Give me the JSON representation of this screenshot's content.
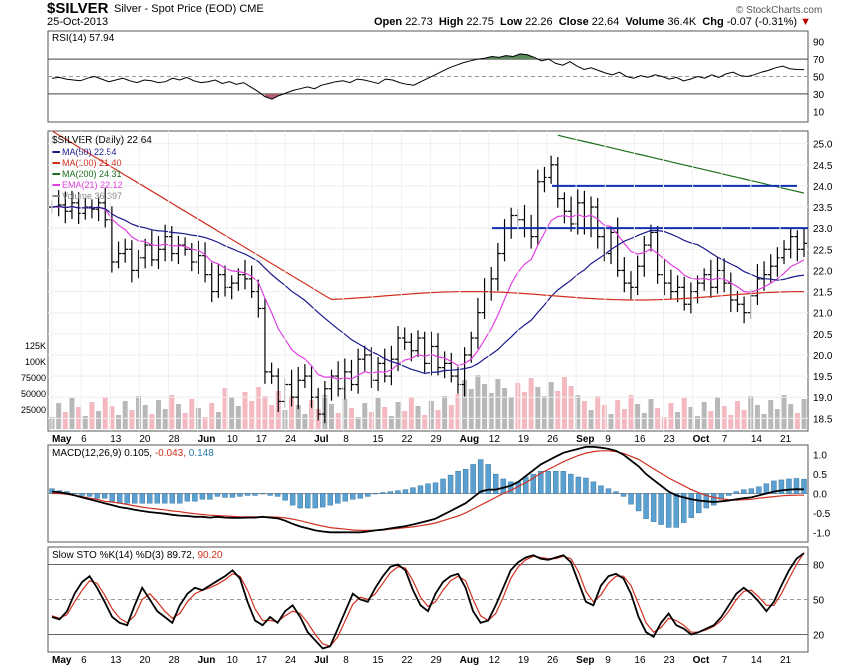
{
  "header": {
    "symbol": "$SILVER",
    "description": "Silver - Spot Price (EOD)",
    "exchange": "CME",
    "date": "25-Oct-2013",
    "open_label": "Open",
    "open": "22.73",
    "high_label": "High",
    "high": "22.75",
    "low_label": "Low",
    "low": "22.26",
    "close_label": "Close",
    "close": "22.64",
    "volume_label": "Volume",
    "volume": "36.4K",
    "chg_label": "Chg",
    "chg": "-0.07 (-0.31%)",
    "brand": "© StockCharts.com"
  },
  "colors": {
    "ma50": "#1a1a8c",
    "ma100": "#d03020",
    "ma200": "#1a6e1a",
    "ema21": "#e040e0",
    "vol_up": "#b8b8b8",
    "vol_down": "#f4b8c0",
    "macd_hist": "#5aa0d0",
    "rsi_over": "#5a8a5a",
    "rsi_under": "#b06070",
    "resistance": "#1030b0"
  },
  "chart_data": [
    {
      "type": "line",
      "title": "RSI(14) 57.94",
      "yticks": [
        10,
        30,
        50,
        70,
        90
      ],
      "ylim": [
        0,
        100
      ],
      "reference_lines": [
        30,
        50,
        70
      ],
      "values": [
        48,
        49,
        47,
        46,
        45,
        48,
        50,
        47,
        44,
        46,
        48,
        45,
        43,
        46,
        45,
        43,
        44,
        48,
        46,
        49,
        45,
        43,
        44,
        46,
        42,
        44,
        41,
        43,
        38,
        33,
        27,
        24,
        28,
        31,
        34,
        36,
        38,
        36,
        40,
        42,
        44,
        45,
        43,
        47,
        46,
        44,
        42,
        47,
        46,
        43,
        41,
        40,
        44,
        48,
        52,
        56,
        60,
        63,
        66,
        68,
        70,
        71,
        73,
        72,
        74,
        73,
        76,
        75,
        72,
        68,
        70,
        65,
        63,
        67,
        62,
        58,
        60,
        57,
        54,
        52,
        55,
        50,
        48,
        51,
        49,
        52,
        50,
        47,
        49,
        45,
        47,
        50,
        48,
        52,
        49,
        53,
        55,
        51,
        50,
        52,
        55,
        57,
        60,
        62,
        59,
        58,
        57.94
      ]
    },
    {
      "type": "line",
      "title": "$SILVER (Daily) 22.64",
      "legend": [
        {
          "name": "MA(50) 22.54",
          "color": "#1a1a8c"
        },
        {
          "name": "MA(100) 21.40",
          "color": "#d03020"
        },
        {
          "name": "MA(200) 24.31",
          "color": "#1a6e1a"
        },
        {
          "name": "EMA(21) 22.12",
          "color": "#e040e0"
        },
        {
          "name": "Volume 36,397",
          "color": "#888888"
        }
      ],
      "yticks": [
        18.5,
        19.0,
        19.5,
        20.0,
        20.5,
        21.0,
        21.5,
        22.0,
        22.5,
        23.0,
        23.5,
        24.0,
        24.5,
        25.0
      ],
      "ylim": [
        18.2,
        25.3
      ],
      "volume_ticks": [
        "25000",
        "50000",
        "75000",
        "100K",
        "125K"
      ],
      "closes": [
        23.5,
        23.55,
        23.4,
        23.6,
        23.35,
        23.5,
        23.45,
        23.6,
        23.2,
        22.2,
        22.4,
        22.5,
        22.0,
        22.3,
        22.6,
        22.25,
        22.5,
        22.8,
        22.4,
        22.6,
        22.5,
        22.2,
        22.35,
        21.9,
        21.5,
        21.9,
        21.6,
        21.7,
        21.9,
        21.8,
        21.5,
        21.1,
        19.6,
        19.5,
        18.9,
        19.3,
        19.0,
        19.4,
        19.5,
        19.0,
        18.6,
        19.2,
        19.5,
        19.2,
        19.6,
        19.3,
        19.9,
        20.0,
        19.4,
        19.8,
        19.5,
        19.9,
        20.4,
        20.3,
        20.1,
        20.4,
        19.8,
        20.2,
        19.7,
        19.8,
        19.5,
        19.3,
        20.0,
        20.4,
        21.0,
        21.5,
        21.8,
        22.4,
        23.0,
        23.3,
        23.2,
        23.0,
        22.8,
        24.1,
        24.2,
        24.5,
        23.7,
        23.4,
        23.1,
        23.6,
        23.0,
        23.5,
        22.8,
        22.4,
        22.9,
        22.0,
        21.7,
        21.6,
        22.1,
        22.6,
        22.9,
        21.9,
        21.7,
        21.5,
        21.6,
        21.2,
        21.5,
        21.7,
        21.9,
        21.6,
        22.0,
        21.7,
        21.3,
        21.2,
        21.0,
        21.4,
        21.8,
        21.9,
        22.1,
        22.3,
        22.5,
        22.8,
        22.5,
        22.64
      ],
      "resistance_lines": [
        24.0,
        23.0
      ],
      "x_labels": [
        "May",
        "6",
        "13",
        "20",
        "28",
        "Jun",
        "10",
        "17",
        "24",
        "Jul",
        "8",
        "15",
        "22",
        "29",
        "Aug",
        "12",
        "19",
        "26",
        "Sep",
        "9",
        "16",
        "23",
        "Oct",
        "7",
        "14",
        "21"
      ],
      "right_ticks": [
        "18.5",
        "19.0",
        "19.5",
        "20.0",
        "20.5",
        "21.0",
        "21.5",
        "22.0",
        "22.5",
        "23.0",
        "23.5",
        "24.0",
        "24.5",
        "25.0"
      ]
    },
    {
      "type": "line",
      "title_prefix": "MACD(12,26,9)",
      "title_macd": "0.105,",
      "title_signal": "-0.043,",
      "title_hist": "0.148",
      "yticks": [
        "-1.0",
        "-0.5",
        "0.0",
        "0.5",
        "1.0"
      ],
      "ylim": [
        -1.25,
        1.25
      ],
      "macd": [
        0.05,
        0.03,
        0.0,
        -0.05,
        -0.1,
        -0.15,
        -0.2,
        -0.25,
        -0.3,
        -0.35,
        -0.38,
        -0.42,
        -0.45,
        -0.48,
        -0.5,
        -0.52,
        -0.55,
        -0.57,
        -0.58,
        -0.6,
        -0.6,
        -0.62,
        -0.6,
        -0.62,
        -0.63,
        -0.63,
        -0.62,
        -0.62,
        -0.6,
        -0.62,
        -0.64,
        -0.7,
        -0.78,
        -0.85,
        -0.9,
        -0.95,
        -0.98,
        -1.0,
        -1.0,
        -1.0,
        -1.0,
        -1.0,
        -0.98,
        -0.95,
        -0.93,
        -0.9,
        -0.87,
        -0.84,
        -0.8,
        -0.75,
        -0.7,
        -0.65,
        -0.55,
        -0.45,
        -0.35,
        -0.25,
        -0.1,
        0.05,
        0.1,
        0.1,
        0.15,
        0.2,
        0.3,
        0.45,
        0.6,
        0.75,
        0.85,
        0.95,
        1.05,
        1.1,
        1.15,
        1.2,
        1.2,
        1.18,
        1.15,
        1.1,
        1.0,
        0.85,
        0.7,
        0.5,
        0.35,
        0.2,
        0.05,
        -0.05,
        -0.1,
        -0.15,
        -0.18,
        -0.2,
        -0.22,
        -0.2,
        -0.18,
        -0.15,
        -0.12,
        -0.1,
        -0.05,
        0.0,
        0.05,
        0.08,
        0.1,
        0.11,
        0.105
      ],
      "signal": [
        0.0,
        0.0,
        -0.02,
        -0.05,
        -0.08,
        -0.12,
        -0.15,
        -0.2,
        -0.22,
        -0.25,
        -0.28,
        -0.32,
        -0.35,
        -0.38,
        -0.4,
        -0.42,
        -0.45,
        -0.47,
        -0.5,
        -0.52,
        -0.54,
        -0.56,
        -0.57,
        -0.58,
        -0.59,
        -0.6,
        -0.6,
        -0.6,
        -0.6,
        -0.6,
        -0.61,
        -0.63,
        -0.66,
        -0.7,
        -0.75,
        -0.8,
        -0.84,
        -0.88,
        -0.9,
        -0.92,
        -0.94,
        -0.95,
        -0.95,
        -0.95,
        -0.94,
        -0.92,
        -0.9,
        -0.88,
        -0.86,
        -0.83,
        -0.8,
        -0.76,
        -0.7,
        -0.64,
        -0.58,
        -0.5,
        -0.4,
        -0.3,
        -0.2,
        -0.1,
        0.0,
        0.08,
        0.18,
        0.28,
        0.4,
        0.52,
        0.62,
        0.72,
        0.82,
        0.9,
        0.98,
        1.04,
        1.08,
        1.1,
        1.1,
        1.08,
        1.03,
        0.96,
        0.88,
        0.76,
        0.64,
        0.52,
        0.4,
        0.3,
        0.2,
        0.1,
        0.02,
        -0.05,
        -0.1,
        -0.14,
        -0.16,
        -0.17,
        -0.16,
        -0.15,
        -0.12,
        -0.1,
        -0.08,
        -0.06,
        -0.05,
        -0.045,
        -0.043
      ]
    },
    {
      "type": "line",
      "title_prefix": "Slow STO %K(14) %D(3)",
      "title_k": "89.72,",
      "title_d": "90.20",
      "yticks": [
        "20",
        "50",
        "80"
      ],
      "ylim": [
        5,
        95
      ],
      "reference_lines": [
        20,
        50,
        80
      ],
      "k": [
        35,
        33,
        40,
        55,
        65,
        70,
        60,
        48,
        35,
        30,
        28,
        45,
        60,
        50,
        40,
        35,
        30,
        45,
        55,
        60,
        58,
        62,
        66,
        70,
        75,
        68,
        48,
        32,
        28,
        35,
        30,
        40,
        45,
        35,
        22,
        15,
        8,
        10,
        25,
        40,
        55,
        50,
        48,
        60,
        70,
        78,
        80,
        75,
        58,
        45,
        40,
        55,
        65,
        70,
        72,
        60,
        40,
        30,
        32,
        45,
        60,
        75,
        82,
        86,
        88,
        85,
        84,
        86,
        88,
        82,
        65,
        48,
        45,
        62,
        70,
        72,
        68,
        55,
        35,
        22,
        18,
        30,
        38,
        28,
        25,
        20,
        22,
        25,
        28,
        35,
        45,
        55,
        60,
        55,
        48,
        40,
        48,
        62,
        75,
        85,
        89.72
      ],
      "d": [
        36,
        34,
        37,
        48,
        58,
        66,
        64,
        54,
        42,
        34,
        30,
        36,
        50,
        55,
        48,
        40,
        34,
        38,
        48,
        55,
        58,
        60,
        63,
        67,
        72,
        70,
        58,
        42,
        32,
        32,
        31,
        36,
        40,
        38,
        30,
        20,
        12,
        10,
        18,
        32,
        46,
        52,
        50,
        55,
        64,
        73,
        78,
        77,
        66,
        52,
        44,
        48,
        58,
        66,
        70,
        66,
        50,
        36,
        32,
        38,
        52,
        68,
        78,
        84,
        87,
        86,
        85,
        85,
        87,
        85,
        74,
        57,
        48,
        54,
        64,
        70,
        70,
        62,
        46,
        30,
        22,
        26,
        34,
        32,
        28,
        22,
        22,
        24,
        27,
        32,
        40,
        50,
        57,
        58,
        52,
        45,
        45,
        55,
        68,
        80,
        90.2
      ]
    }
  ],
  "x_axis_labels": [
    "May",
    "6",
    "13",
    "20",
    "28",
    "Jun",
    "10",
    "17",
    "24",
    "Jul",
    "8",
    "15",
    "22",
    "29",
    "Aug",
    "12",
    "19",
    "26",
    "Sep",
    "9",
    "16",
    "23",
    "Oct",
    "7",
    "14",
    "21"
  ]
}
